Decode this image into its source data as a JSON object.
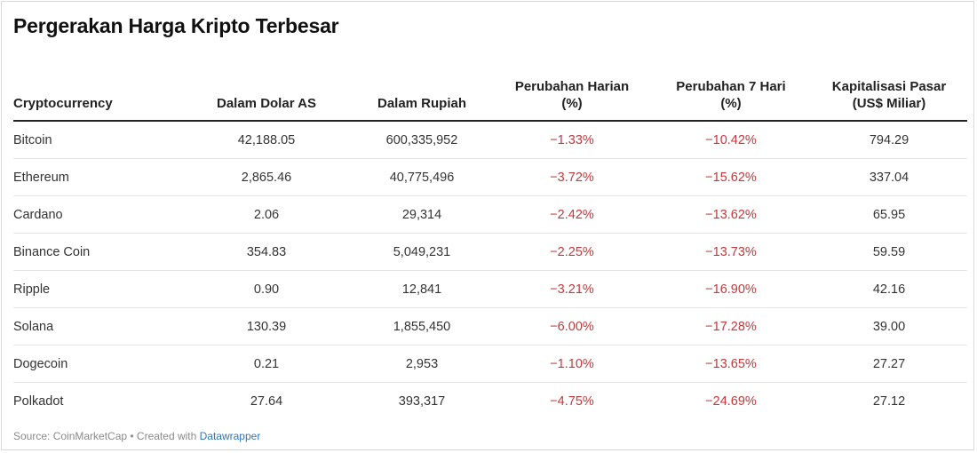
{
  "title": "Pergerakan Harga Kripto Terbesar",
  "chart_data": {
    "type": "table",
    "title": "Pergerakan Harga Kripto Terbesar",
    "columns": [
      "Cryptocurrency",
      "Dalam Dolar AS",
      "Dalam Rupiah",
      "Perubahan Harian (%)",
      "Perubahan 7 Hari (%)",
      "Kapitalisasi Pasar (US$ Miliar)"
    ],
    "rows": [
      [
        "Bitcoin",
        "42,188.05",
        "600,335,952",
        "−1.33%",
        "−10.42%",
        "794.29"
      ],
      [
        "Ethereum",
        "2,865.46",
        "40,775,496",
        "−3.72%",
        "−15.62%",
        "337.04"
      ],
      [
        "Cardano",
        "2.06",
        "29,314",
        "−2.42%",
        "−13.62%",
        "65.95"
      ],
      [
        "Binance Coin",
        "354.83",
        "5,049,231",
        "−2.25%",
        "−13.73%",
        "59.59"
      ],
      [
        "Ripple",
        "0.90",
        "12,841",
        "−3.21%",
        "−16.90%",
        "42.16"
      ],
      [
        "Solana",
        "130.39",
        "1,855,450",
        "−6.00%",
        "−17.28%",
        "39.00"
      ],
      [
        "Dogecoin",
        "0.21",
        "2,953",
        "−1.10%",
        "−13.65%",
        "27.27"
      ],
      [
        "Polkadot",
        "27.64",
        "393,317",
        "−4.75%",
        "−24.69%",
        "27.12"
      ]
    ],
    "negative_color": "#c0393b"
  },
  "footer": {
    "source": "Source: CoinMarketCap • Created with ",
    "tool": "Datawrapper"
  },
  "colors": {
    "negative": "#c0393b",
    "link": "#2f78b7"
  }
}
